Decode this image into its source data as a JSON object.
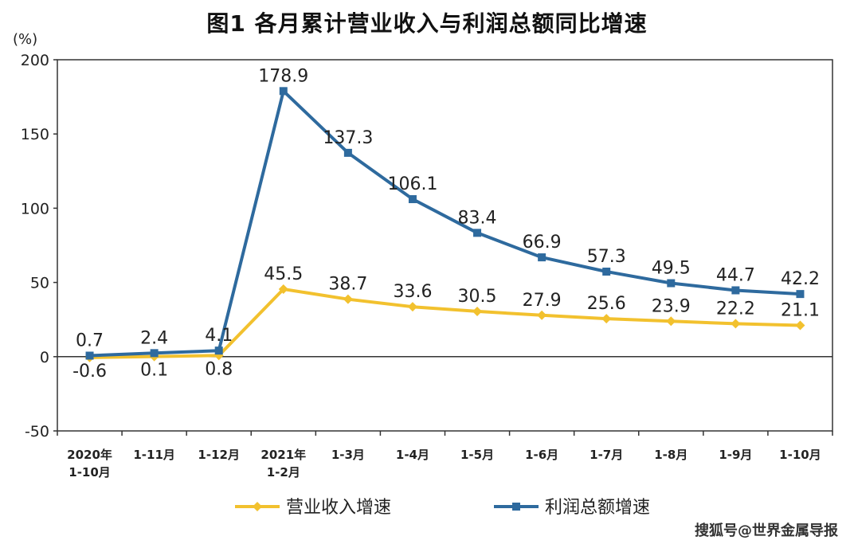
{
  "title": "图1  各月累计营业收入与利润总额同比增速",
  "watermark": "搜狐号@世界金属导报",
  "chart_data": {
    "type": "line",
    "ylabel": "(%)",
    "ylim": [
      -50,
      200
    ],
    "yticks": [
      "200",
      "150",
      "100",
      "50",
      "0",
      "-50"
    ],
    "ytick_values": [
      200,
      150,
      100,
      50,
      0,
      -50
    ],
    "categories": [
      [
        "2020年",
        "1-10月"
      ],
      [
        "1-11月"
      ],
      [
        "1-12月"
      ],
      [
        "2021年",
        "1-2月"
      ],
      [
        "1-3月"
      ],
      [
        "1-4月"
      ],
      [
        "1-5月"
      ],
      [
        "1-6月"
      ],
      [
        "1-7月"
      ],
      [
        "1-8月"
      ],
      [
        "1-9月"
      ],
      [
        "1-10月"
      ]
    ],
    "series": [
      {
        "name": "营业收入增速",
        "color": "#f2c12e",
        "values": [
          -0.6,
          0.1,
          0.8,
          45.5,
          38.7,
          33.6,
          30.5,
          27.9,
          25.6,
          23.9,
          22.2,
          21.1
        ],
        "labels": [
          "-0.6",
          "0.1",
          "0.8",
          "45.5",
          "38.7",
          "33.6",
          "30.5",
          "27.9",
          "25.6",
          "23.9",
          "22.2",
          "21.1"
        ]
      },
      {
        "name": "利润总额增速",
        "color": "#2e6a9e",
        "values": [
          0.7,
          2.4,
          4.1,
          178.9,
          137.3,
          106.1,
          83.4,
          66.9,
          57.3,
          49.5,
          44.7,
          42.2
        ],
        "labels": [
          "0.7",
          "2.4",
          "4.1",
          "178.9",
          "137.3",
          "106.1",
          "83.4",
          "66.9",
          "57.3",
          "49.5",
          "44.7",
          "42.2"
        ]
      }
    ],
    "legend_position": "bottom",
    "grid": false
  }
}
